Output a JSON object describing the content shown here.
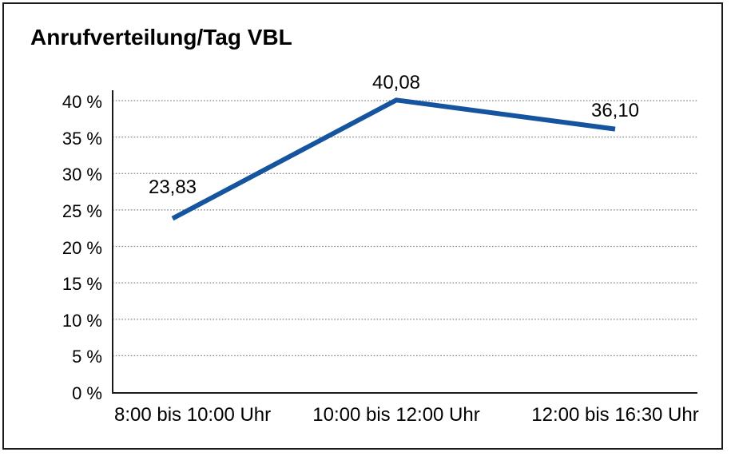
{
  "window": {
    "background": "#ffffff",
    "frame_border_color": "#1a1a1a"
  },
  "chart_data": {
    "type": "line",
    "title": "Anrufverteilung/Tag VBL",
    "categories": [
      "8:00 bis 10:00 Uhr",
      "10:00 bis 12:00 Uhr",
      "12:00 bis 16:30 Uhr"
    ],
    "values": [
      23.83,
      40.08,
      36.1
    ],
    "point_labels": [
      "23,83",
      "40,08",
      "36,10"
    ],
    "xlabel": "",
    "ylabel": "",
    "ylim": [
      0,
      40
    ],
    "y_tick_step": 5,
    "y_tick_labels": [
      "0 %",
      "5 %",
      "10 %",
      "15 %",
      "20 %",
      "25 %",
      "30 %",
      "35 %",
      "40 %"
    ],
    "grid": "horizontal-dotted",
    "legend": "none",
    "line_color": "#15549e",
    "line_width": 6,
    "gridline_color": "#818181",
    "axis_color": "#1a1a1a",
    "text_color": "#000000"
  }
}
